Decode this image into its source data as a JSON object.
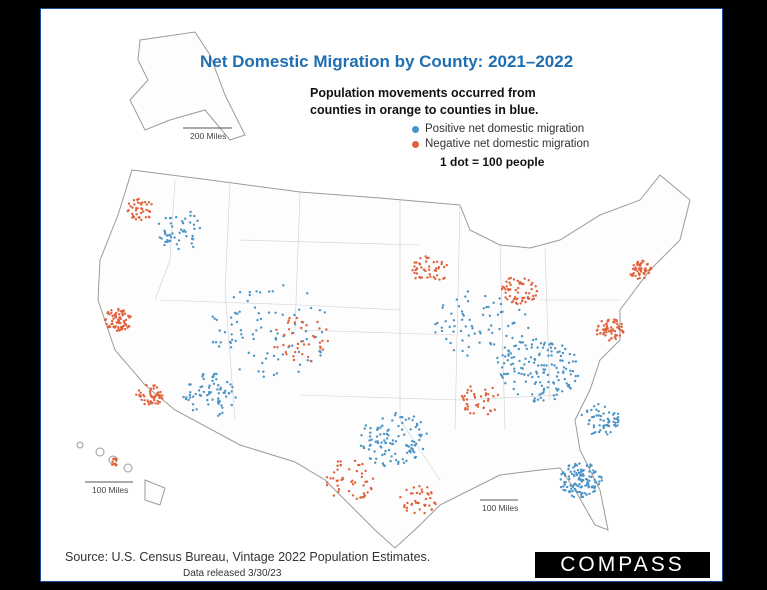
{
  "title": "Net Domestic Migration by County: 2021–2022",
  "subtitle": "Population movements occurred from counties in orange to counties in blue.",
  "legend": {
    "positive": "Positive net domestic migration",
    "negative": "Negative net domestic migration",
    "positive_color": "#4a93c4",
    "negative_color": "#e0603a"
  },
  "scale_note": "1 dot = 100 people",
  "scale_bars": {
    "alaska": "200 Miles",
    "hawaii": "100 Miles",
    "puerto_rico": "100 Miles"
  },
  "source": "Source: U.S. Census Bureau, Vintage 2022 Population Estimates.",
  "released": "Data released 3/30/23",
  "brand": "COMPASS"
}
